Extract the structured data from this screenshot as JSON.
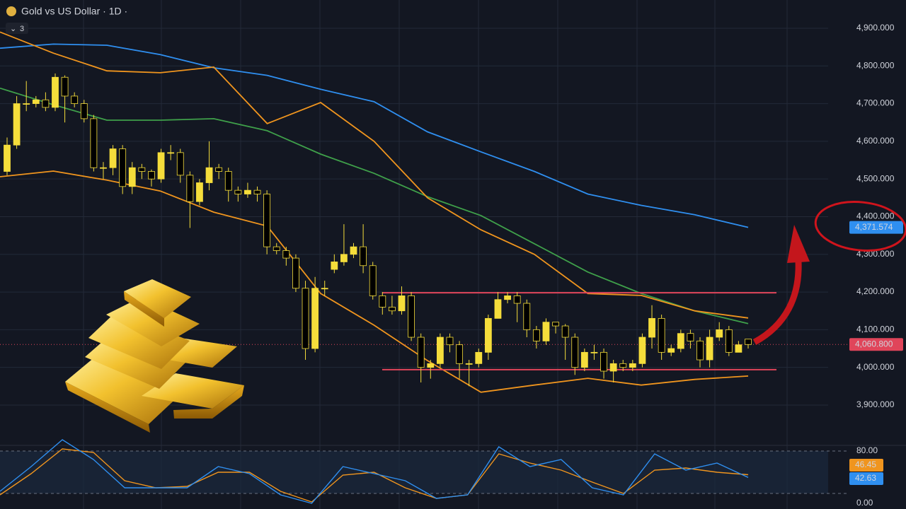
{
  "chart_data": [
    {
      "type": "candlestick",
      "title": "Gold vs US Dollar · 1D ·",
      "indicator_count": 3,
      "up_color": "#f5dd3b",
      "down_color": "#000000",
      "ylim": [
        3793,
        4975
      ],
      "yticks": [
        {
          "value": 4900,
          "label": "4,900.000"
        },
        {
          "value": 4800,
          "label": "4,800.000"
        },
        {
          "value": 4700,
          "label": "4,700.000"
        },
        {
          "value": 4600,
          "label": "4,600.000"
        },
        {
          "value": 4500,
          "label": "4,500.000"
        },
        {
          "value": 4400,
          "label": "4,400.000"
        },
        {
          "value": 4300,
          "label": "4,300.000"
        },
        {
          "value": 4200,
          "label": "4,200.000"
        },
        {
          "value": 4100,
          "label": "4,100.000"
        },
        {
          "value": 4000,
          "label": "4,000.000"
        },
        {
          "value": 3900,
          "label": "3,900.000"
        }
      ],
      "grid": true,
      "open": [
        4520,
        4590,
        4700,
        4700,
        4710,
        4690,
        4770,
        4720,
        4700,
        4660,
        4530,
        4530,
        4580,
        4480,
        4530,
        4520,
        4500,
        4570,
        4570,
        4510,
        4440,
        4490,
        4530,
        4520,
        4470,
        4460,
        4470,
        4460,
        4320,
        4310,
        4290,
        4210,
        4050,
        4210,
        4260,
        4280,
        4300,
        4320,
        4270,
        4190,
        4160,
        4150,
        4190,
        4080,
        4000,
        4010,
        4080,
        4060,
        4010,
        4010,
        4040,
        4130,
        4180,
        4190,
        4170,
        4100,
        4070,
        4120,
        4110,
        4080,
        4000,
        4040,
        4040,
        3990,
        4010,
        4000,
        4010,
        4080,
        4130,
        4040,
        4050,
        4090,
        4070,
        4020,
        4080,
        4100,
        4040,
        4075
      ],
      "high": [
        4610,
        4720,
        4760,
        4720,
        4730,
        4780,
        4775,
        4730,
        4710,
        4670,
        4545,
        4590,
        4590,
        4545,
        4540,
        4525,
        4580,
        4590,
        4580,
        4520,
        4500,
        4600,
        4540,
        4530,
        4480,
        4490,
        4480,
        4470,
        4330,
        4320,
        4300,
        4230,
        4240,
        4230,
        4300,
        4380,
        4330,
        4380,
        4280,
        4200,
        4190,
        4215,
        4200,
        4090,
        4020,
        4090,
        4090,
        4070,
        4020,
        4050,
        4140,
        4200,
        4200,
        4200,
        4180,
        4110,
        4130,
        4120,
        4115,
        4090,
        4050,
        4060,
        4050,
        4020,
        4020,
        4020,
        4090,
        4165,
        4140,
        4060,
        4100,
        4100,
        4080,
        4100,
        4120,
        4110,
        4070,
        4075
      ],
      "low": [
        4510,
        4580,
        4680,
        4690,
        4680,
        4680,
        4650,
        4690,
        4650,
        4520,
        4500,
        4510,
        4460,
        4460,
        4500,
        4480,
        4490,
        4550,
        4490,
        4370,
        4430,
        4470,
        4500,
        4440,
        4440,
        4450,
        4440,
        4300,
        4300,
        4270,
        4200,
        4020,
        4040,
        4190,
        4250,
        4270,
        4290,
        4250,
        4180,
        4140,
        4140,
        4140,
        4070,
        3960,
        3970,
        4000,
        4040,
        3970,
        3950,
        4000,
        4020,
        4130,
        4170,
        4120,
        4080,
        4050,
        4060,
        4090,
        4020,
        3980,
        3990,
        4020,
        3970,
        3960,
        3990,
        3990,
        4000,
        4050,
        4020,
        4030,
        4040,
        4050,
        4000,
        4000,
        4070,
        4030,
        4040,
        4050
      ],
      "close": [
        4590,
        4700,
        4700,
        4710,
        4690,
        4770,
        4720,
        4700,
        4660,
        4530,
        4530,
        4580,
        4480,
        4530,
        4520,
        4500,
        4570,
        4570,
        4510,
        4440,
        4490,
        4530,
        4520,
        4470,
        4460,
        4470,
        4460,
        4320,
        4310,
        4290,
        4210,
        4050,
        4210,
        4210,
        4280,
        4300,
        4320,
        4270,
        4190,
        4160,
        4150,
        4190,
        4080,
        4000,
        4010,
        4080,
        4060,
        4010,
        4010,
        4040,
        4130,
        4180,
        4190,
        4170,
        4100,
        4070,
        4120,
        4110,
        4080,
        4000,
        4040,
        4040,
        3990,
        4010,
        4000,
        4010,
        4080,
        4130,
        4040,
        4050,
        4090,
        4070,
        4020,
        4080,
        4100,
        4040,
        4060,
        4060.8
      ],
      "series": [
        {
          "color": "#2f8ff0",
          "values": [
            4847,
            4858,
            4855,
            4830,
            4795,
            4775,
            4738,
            4705,
            4625,
            4572,
            4520,
            4460,
            4430,
            4405,
            4371.574
          ],
          "last_label": "4,371.574"
        },
        {
          "color": "#3fa04a",
          "values": [
            4741,
            4697,
            4656,
            4656,
            4660,
            4628,
            4566,
            4515,
            4453,
            4403,
            4328,
            4253,
            4196,
            4150,
            4116
          ]
        },
        {
          "color": "#f0951e",
          "values": [
            4890,
            4834,
            4787,
            4782,
            4797,
            4647,
            4703,
            4600,
            4450,
            4365,
            4300,
            4196,
            4191,
            4150,
            4131
          ]
        },
        {
          "color": "#f0951e",
          "values": [
            4506,
            4521,
            4497,
            4468,
            4412,
            4375,
            4196,
            4112,
            4018,
            3934,
            3953,
            3971,
            3953,
            3968,
            3977
          ]
        }
      ],
      "levels": [
        {
          "value": 4198,
          "color": "#e0455a"
        },
        {
          "value": 3994,
          "color": "#e0455a"
        }
      ],
      "last_price": {
        "value": 4060.8,
        "label": "4,060.800"
      }
    },
    {
      "type": "line",
      "ylim": [
        -2,
        88
      ],
      "yticks": [
        {
          "value": 80,
          "label": "80.00"
        },
        {
          "value": 0,
          "label": "0.00"
        }
      ],
      "band": [
        20,
        80
      ],
      "series": [
        {
          "color": "#f0951e",
          "values": [
            18,
            48,
            83,
            78,
            38,
            28,
            30,
            50,
            50,
            23,
            8,
            46,
            50,
            28,
            13,
            18,
            76,
            63,
            53,
            36,
            20,
            53,
            56,
            50,
            46.45
          ],
          "last_label": "46.45"
        },
        {
          "color": "#2f8ff0",
          "values": [
            23,
            58,
            96,
            68,
            28,
            28,
            28,
            58,
            48,
            18,
            6,
            58,
            48,
            38,
            13,
            18,
            86,
            58,
            68,
            28,
            18,
            76,
            53,
            63,
            42.63
          ],
          "last_label": "42.63"
        }
      ]
    }
  ]
}
